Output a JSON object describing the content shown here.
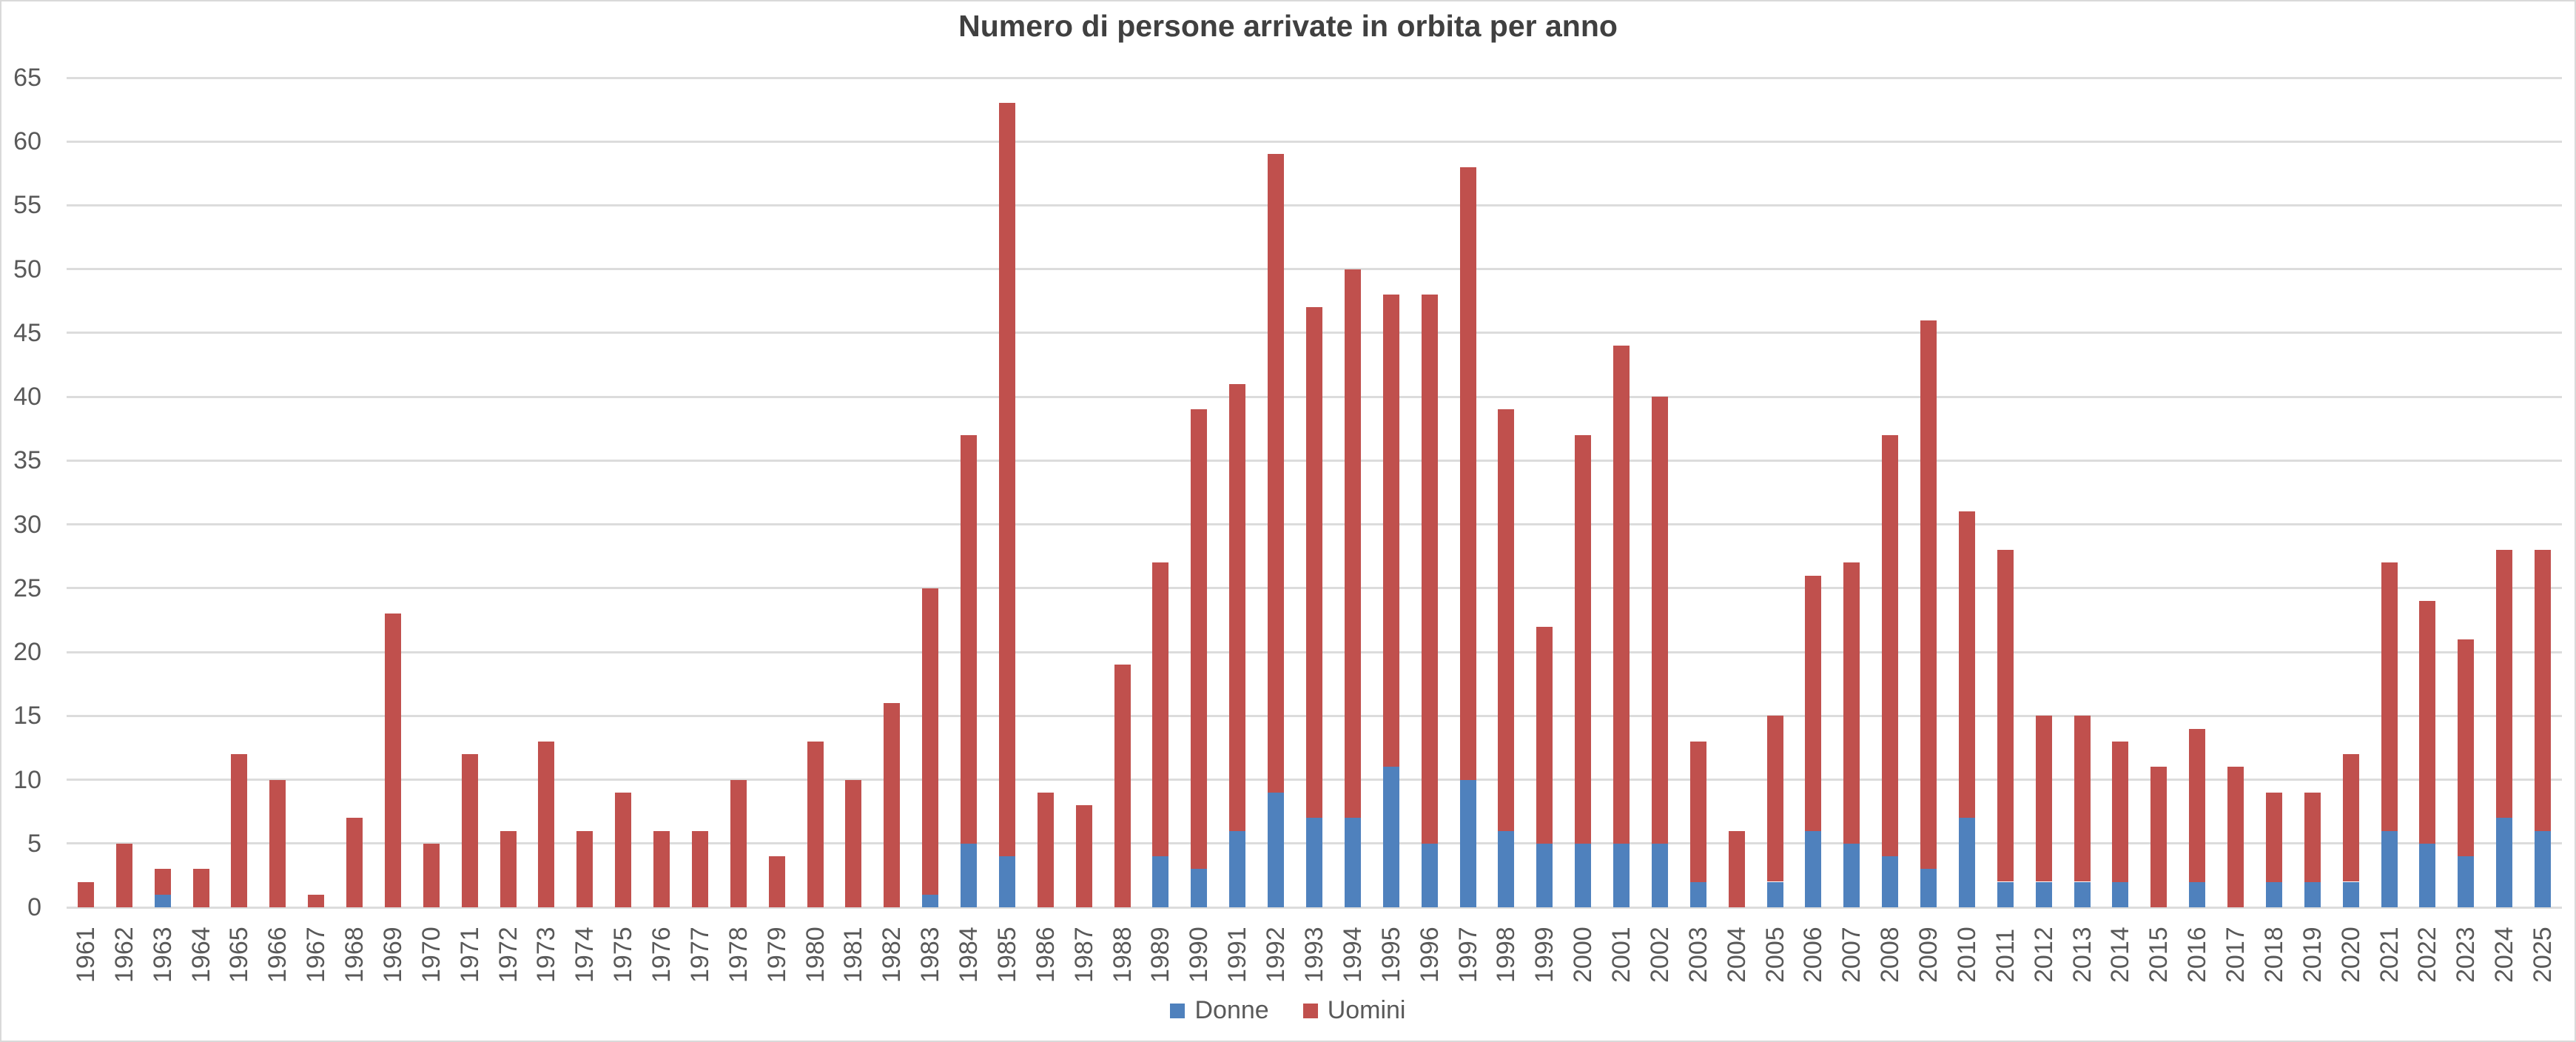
{
  "title": "Numero di persone arrivate in orbita per anno",
  "legend": {
    "items": [
      {
        "label": "Donne"
      },
      {
        "label": "Uomini"
      }
    ]
  },
  "colors": {
    "donne": "#4F81BD",
    "uomini": "#C0504D",
    "gridline": "#DCDCDC",
    "tick_text": "#595959",
    "title_text": "#404040",
    "border": "#D9D9D9",
    "background": "#FFFFFF"
  },
  "y_axis": {
    "tick_labels": [
      "0",
      "5",
      "10",
      "15",
      "20",
      "25",
      "30",
      "35",
      "40",
      "45",
      "50",
      "55",
      "60",
      "65"
    ]
  },
  "chart_data": {
    "type": "bar",
    "stacked": true,
    "title": "Numero di persone arrivate in orbita per anno",
    "xlabel": "",
    "ylabel": "",
    "ylim": [
      0,
      65
    ],
    "ytick_step": 5,
    "grid": true,
    "legend_position": "bottom",
    "categories": [
      "1961",
      "1962",
      "1963",
      "1964",
      "1965",
      "1966",
      "1967",
      "1968",
      "1969",
      "1970",
      "1971",
      "1972",
      "1973",
      "1974",
      "1975",
      "1976",
      "1977",
      "1978",
      "1979",
      "1980",
      "1981",
      "1982",
      "1983",
      "1984",
      "1985",
      "1986",
      "1987",
      "1988",
      "1989",
      "1990",
      "1991",
      "1992",
      "1993",
      "1994",
      "1995",
      "1996",
      "1997",
      "1998",
      "1999",
      "2000",
      "2001",
      "2002",
      "2003",
      "2004",
      "2005",
      "2006",
      "2007",
      "2008",
      "2009",
      "2010",
      "2011",
      "2012",
      "2013",
      "2014",
      "2015",
      "2016",
      "2017",
      "2018",
      "2019",
      "2020",
      "2021",
      "2022",
      "2023",
      "2024",
      "2025"
    ],
    "series": [
      {
        "name": "Donne",
        "color": "#4F81BD",
        "values": [
          0,
          0,
          1,
          0,
          0,
          0,
          0,
          0,
          0,
          0,
          0,
          0,
          0,
          0,
          0,
          0,
          0,
          0,
          0,
          0,
          0,
          0,
          1,
          5,
          4,
          0,
          0,
          0,
          4,
          3,
          6,
          9,
          7,
          7,
          11,
          5,
          10,
          6,
          5,
          5,
          5,
          5,
          2,
          0,
          2,
          6,
          5,
          4,
          3,
          7,
          2,
          2,
          2,
          2,
          0,
          2,
          0,
          2,
          2,
          2,
          6,
          5,
          4,
          7,
          6
        ]
      },
      {
        "name": "Uomini",
        "color": "#C0504D",
        "values": [
          2,
          5,
          2,
          3,
          12,
          10,
          1,
          7,
          23,
          5,
          12,
          6,
          13,
          6,
          9,
          6,
          6,
          10,
          4,
          13,
          10,
          16,
          24,
          32,
          59,
          9,
          8,
          19,
          23,
          36,
          35,
          50,
          40,
          43,
          37,
          43,
          48,
          33,
          17,
          32,
          39,
          35,
          11,
          6,
          13,
          20,
          22,
          33,
          43,
          24,
          26,
          13,
          13,
          11,
          11,
          12,
          11,
          7,
          7,
          10,
          21,
          19,
          17,
          21,
          22
        ]
      }
    ],
    "totals": [
      2,
      5,
      3,
      3,
      12,
      10,
      1,
      7,
      23,
      5,
      12,
      6,
      13,
      6,
      9,
      6,
      6,
      10,
      4,
      13,
      10,
      16,
      25,
      37,
      63,
      9,
      8,
      19,
      27,
      39,
      41,
      59,
      47,
      50,
      48,
      48,
      58,
      39,
      22,
      37,
      44,
      40,
      13,
      6,
      15,
      26,
      27,
      37,
      46,
      31,
      28,
      15,
      15,
      13,
      11,
      14,
      11,
      9,
      9,
      12,
      27,
      24,
      21,
      28,
      28
    ]
  }
}
